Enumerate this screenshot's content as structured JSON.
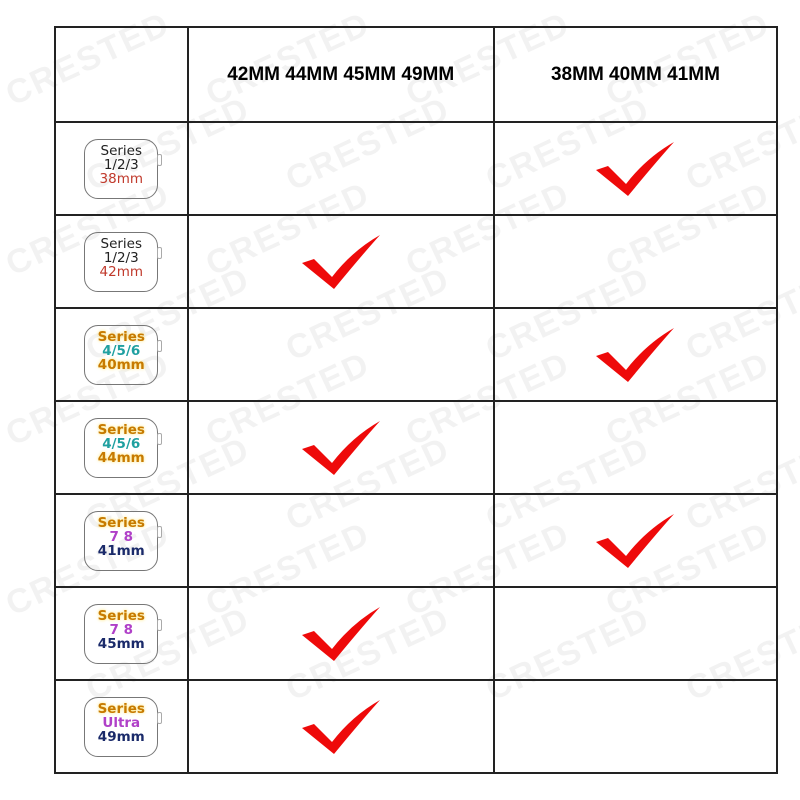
{
  "watermark": "CRESTED",
  "header": {
    "col_a": "42MM  44MM  45MM  49MM",
    "col_b": "38MM  40MM  41MM"
  },
  "colors": {
    "check": "#ee0a0a",
    "gold": "#c77a00",
    "teal": "#1fa0a0",
    "purple": "#b040c8",
    "navy": "#1a2a6a",
    "red": "#c0392b"
  },
  "rows": [
    {
      "series": "Series",
      "model": "1/2/3",
      "size": "38mm",
      "style": "plain",
      "model_color": "#222",
      "size_color": "#c0392b",
      "fits": "b"
    },
    {
      "series": "Series",
      "model": "1/2/3",
      "size": "42mm",
      "style": "plain",
      "model_color": "#222",
      "size_color": "#c0392b",
      "fits": "a"
    },
    {
      "series": "Series",
      "model": "4/5/6",
      "size": "40mm",
      "style": "gold",
      "model_color": "#1fa0a0",
      "size_color": "#c77a00",
      "fits": "b"
    },
    {
      "series": "Series",
      "model": "4/5/6",
      "size": "44mm",
      "style": "gold",
      "model_color": "#1fa0a0",
      "size_color": "#c77a00",
      "fits": "a"
    },
    {
      "series": "Series",
      "model": "7 8",
      "size": "41mm",
      "style": "gold",
      "model_color": "#b040c8",
      "size_color": "#1a2a6a",
      "fits": "b"
    },
    {
      "series": "Series",
      "model": "7 8",
      "size": "45mm",
      "style": "gold",
      "model_color": "#b040c8",
      "size_color": "#1a2a6a",
      "fits": "a"
    },
    {
      "series": "Series",
      "model": "Ultra",
      "size": "49mm",
      "style": "gold",
      "model_color": "#b040c8",
      "size_color": "#1a2a6a",
      "fits": "a"
    }
  ]
}
